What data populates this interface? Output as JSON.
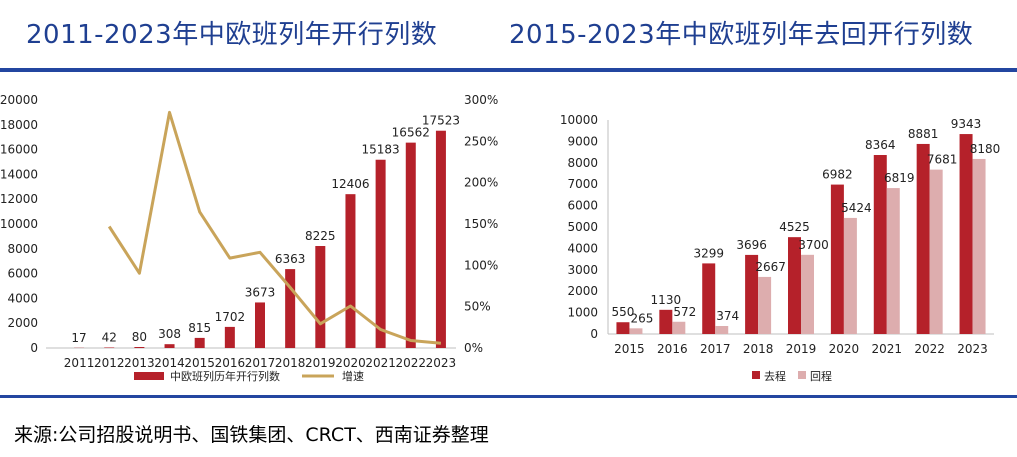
{
  "titles": {
    "left": "2011-2023年中欧班列年开行列数",
    "right": "2015-2023年中欧班列年去回开行列数"
  },
  "source": "来源:公司招股说明书、国铁集团、CRCT、西南证券整理",
  "colors": {
    "title": "#1f3f91",
    "rule": "#2346a0",
    "bar_dark": "#b5212a",
    "bar_light": "#ddadae",
    "line_gold": "#c9a45a",
    "axis": "#bfbfbf"
  },
  "chart_data": [
    {
      "type": "bar",
      "categories": [
        "2011",
        "2012",
        "2013",
        "2014",
        "2015",
        "2016",
        "2017",
        "2018",
        "2019",
        "2020",
        "2021",
        "2022",
        "2023"
      ],
      "series": [
        {
          "name": "中欧班列历年开行列数",
          "values": [
            17,
            42,
            80,
            308,
            815,
            1702,
            3673,
            6363,
            8225,
            12406,
            15183,
            16562,
            17523
          ],
          "axis": "left"
        },
        {
          "name": "增速",
          "type": "line",
          "values": [
            null,
            1.47,
            0.905,
            2.85,
            1.646,
            1.088,
            1.158,
            0.732,
            0.293,
            0.508,
            0.224,
            0.091,
            0.058
          ],
          "axis": "right"
        }
      ],
      "y_left_ticks": [
        "0",
        "2000",
        "4000",
        "6000",
        "8000",
        "10000",
        "12000",
        "14000",
        "16000",
        "18000",
        "20000"
      ],
      "y_right_ticks": [
        "0%",
        "50%",
        "100%",
        "150%",
        "200%",
        "250%",
        "300%"
      ],
      "ylim_left": [
        0,
        20000
      ],
      "ylim_right": [
        0,
        3
      ],
      "legend_position": "bottom"
    },
    {
      "type": "bar",
      "categories": [
        "2015",
        "2016",
        "2017",
        "2018",
        "2019",
        "2020",
        "2021",
        "2022",
        "2023"
      ],
      "series": [
        {
          "name": "去程",
          "values": [
            550,
            1130,
            3299,
            3696,
            4525,
            6982,
            8364,
            8881,
            9343
          ]
        },
        {
          "name": "回程",
          "values": [
            265,
            572,
            374,
            2667,
            3700,
            5424,
            6819,
            7681,
            8180
          ]
        }
      ],
      "y_ticks": [
        "0",
        "1000",
        "2000",
        "3000",
        "4000",
        "5000",
        "6000",
        "7000",
        "8000",
        "9000",
        "10000"
      ],
      "ylim": [
        0,
        10000
      ],
      "legend_position": "bottom"
    }
  ]
}
